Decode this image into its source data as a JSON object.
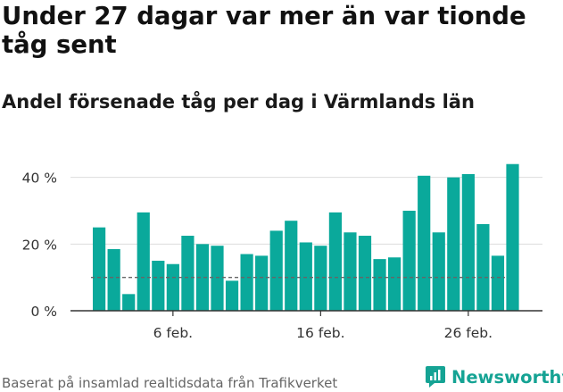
{
  "header": {
    "title": "Under 27 dagar var mer än var tionde tåg sent",
    "subtitle": "Andel försenade tåg per dag i Värmlands län"
  },
  "footer": {
    "source": "Baserat på insamlad realtidsdata från Trafikverket",
    "brand": "Newsworthy"
  },
  "colors": {
    "bar": "#0aa99b",
    "brand": "#15a394",
    "grid": "#dddddd",
    "reference_line": "#666666"
  },
  "chart_data": {
    "type": "bar",
    "x": [
      "2024-02-01",
      "2024-02-02",
      "2024-02-03",
      "2024-02-04",
      "2024-02-05",
      "2024-02-06",
      "2024-02-07",
      "2024-02-08",
      "2024-02-09",
      "2024-02-10",
      "2024-02-11",
      "2024-02-12",
      "2024-02-13",
      "2024-02-14",
      "2024-02-15",
      "2024-02-16",
      "2024-02-17",
      "2024-02-18",
      "2024-02-19",
      "2024-02-20",
      "2024-02-21",
      "2024-02-22",
      "2024-02-23",
      "2024-02-24",
      "2024-02-25",
      "2024-02-26",
      "2024-02-27",
      "2024-02-28",
      "2024-02-29"
    ],
    "values": [
      25,
      18.5,
      5,
      29.5,
      15,
      14,
      22.5,
      20,
      19.5,
      9,
      17,
      16.5,
      24,
      27,
      20.5,
      19.5,
      29.5,
      23.5,
      22.5,
      15.5,
      16,
      30,
      40.5,
      23.5,
      40,
      41,
      26,
      16.5,
      44
    ],
    "reference_line": 10,
    "ylim": [
      0,
      45
    ],
    "yticks": [
      0,
      20,
      40
    ],
    "ytick_labels": [
      "0 %",
      "20 %",
      "40 %"
    ],
    "xtick_labels": [
      {
        "x": "2024-02-06",
        "label": "6 feb."
      },
      {
        "x": "2024-02-16",
        "label": "16 feb."
      },
      {
        "x": "2024-02-26",
        "label": "26 feb."
      }
    ],
    "grid": true,
    "legend": "none"
  }
}
